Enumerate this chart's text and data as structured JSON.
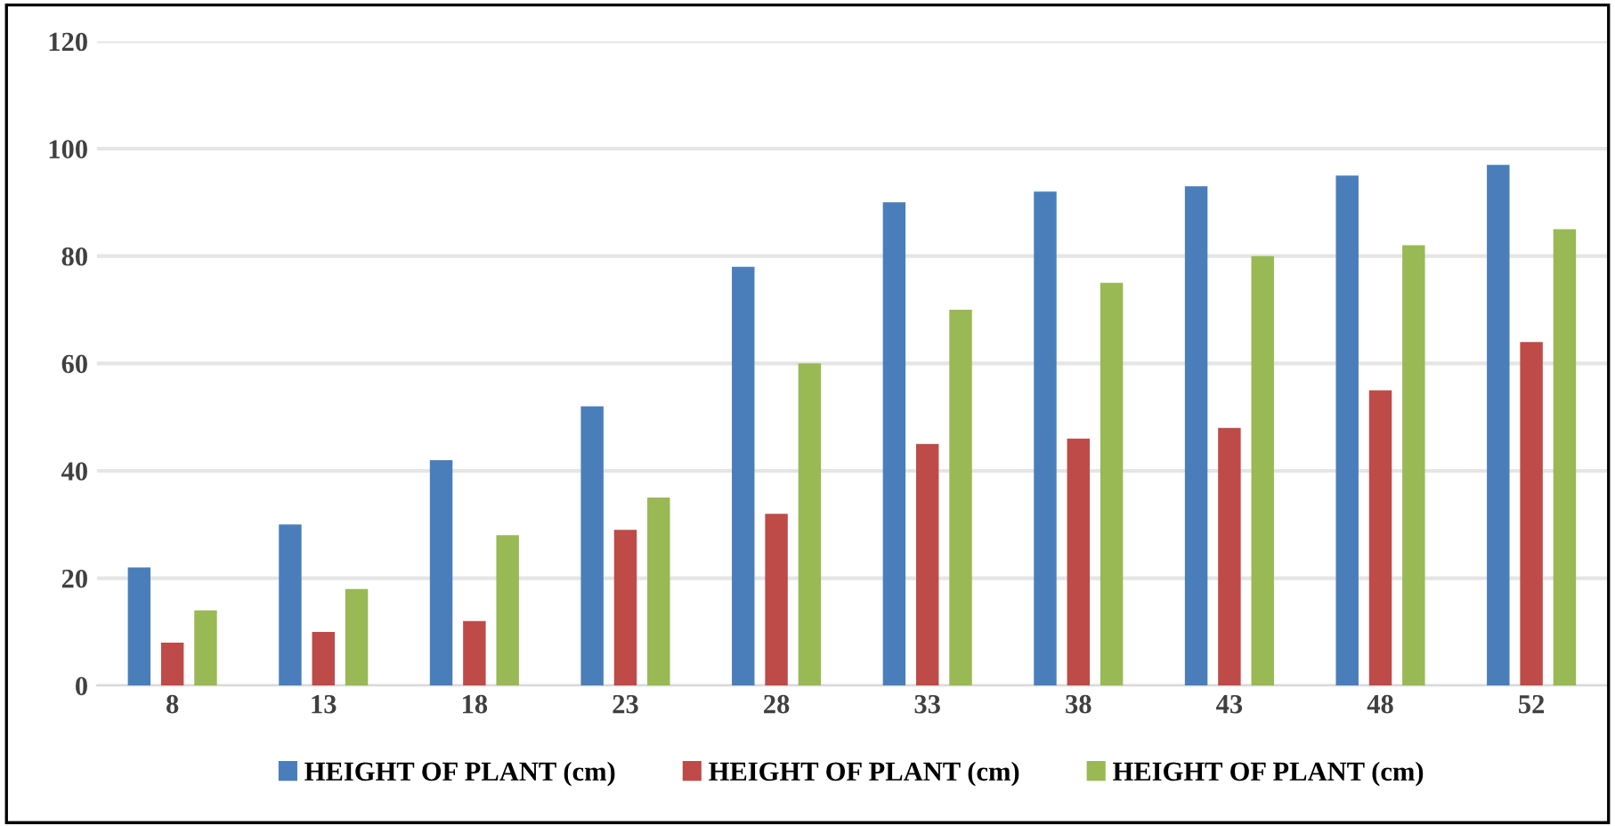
{
  "chart_data": {
    "type": "bar",
    "categories": [
      "8",
      "13",
      "18",
      "23",
      "28",
      "33",
      "38",
      "43",
      "48",
      "52"
    ],
    "series": [
      {
        "name": "HEIGHT OF PLANT (cm)",
        "color": "#4a7ebb",
        "values": [
          22,
          30,
          42,
          52,
          78,
          90,
          92,
          93,
          95,
          97
        ]
      },
      {
        "name": "HEIGHT OF PLANT (cm)",
        "color": "#be4b48",
        "values": [
          8,
          10,
          12,
          29,
          32,
          45,
          46,
          48,
          55,
          64
        ]
      },
      {
        "name": "HEIGHT OF PLANT (cm)",
        "color": "#98b954",
        "values": [
          14,
          18,
          28,
          35,
          60,
          70,
          75,
          80,
          82,
          85
        ]
      }
    ],
    "ylim": [
      0,
      120
    ],
    "yticks": [
      0,
      20,
      40,
      60,
      80,
      100,
      120
    ],
    "grid": "y",
    "legend": "bottom"
  }
}
